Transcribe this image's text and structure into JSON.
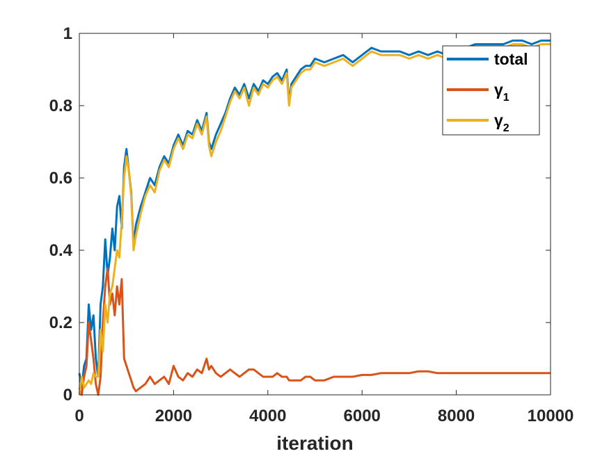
{
  "chart_data": {
    "type": "line",
    "title": "",
    "xlabel": "iteration",
    "ylabel": "",
    "xlim": [
      0,
      10000
    ],
    "ylim": [
      0,
      1
    ],
    "xticks": [
      0,
      2000,
      4000,
      6000,
      8000,
      10000
    ],
    "xtick_labels": [
      "0",
      "2000",
      "4000",
      "6000",
      "8000",
      "10000"
    ],
    "yticks": [
      0,
      0.2,
      0.4,
      0.6,
      0.8,
      1
    ],
    "ytick_labels": [
      "0",
      "0.2",
      "0.4",
      "0.6",
      "0.8",
      "1"
    ],
    "grid": false,
    "legend_position": "top-right",
    "series": [
      {
        "name": "total",
        "legend": {
          "base": "total",
          "sub": ""
        },
        "color": "#0072BD",
        "x": [
          0,
          50,
          100,
          150,
          200,
          250,
          300,
          350,
          400,
          450,
          500,
          550,
          600,
          650,
          700,
          750,
          800,
          850,
          900,
          950,
          1000,
          1050,
          1100,
          1150,
          1200,
          1300,
          1400,
          1500,
          1600,
          1700,
          1800,
          1900,
          2000,
          2100,
          2200,
          2300,
          2400,
          2500,
          2600,
          2700,
          2750,
          2800,
          2900,
          3000,
          3100,
          3200,
          3300,
          3400,
          3500,
          3600,
          3700,
          3800,
          3900,
          4000,
          4100,
          4200,
          4300,
          4400,
          4450,
          4500,
          4600,
          4700,
          4800,
          4900,
          5000,
          5200,
          5400,
          5600,
          5800,
          6000,
          6200,
          6400,
          6600,
          6800,
          7000,
          7200,
          7400,
          7600,
          7800,
          8000,
          8200,
          8400,
          8600,
          8800,
          9000,
          9200,
          9400,
          9600,
          9800,
          10000
        ],
        "y": [
          0.06,
          0.02,
          0.08,
          0.1,
          0.25,
          0.18,
          0.22,
          0.1,
          0.05,
          0.25,
          0.3,
          0.43,
          0.33,
          0.38,
          0.46,
          0.4,
          0.52,
          0.55,
          0.46,
          0.63,
          0.68,
          0.62,
          0.56,
          0.41,
          0.47,
          0.52,
          0.56,
          0.6,
          0.58,
          0.63,
          0.66,
          0.64,
          0.69,
          0.72,
          0.69,
          0.73,
          0.72,
          0.76,
          0.73,
          0.78,
          0.7,
          0.68,
          0.72,
          0.75,
          0.78,
          0.82,
          0.85,
          0.83,
          0.86,
          0.82,
          0.86,
          0.84,
          0.87,
          0.86,
          0.88,
          0.89,
          0.87,
          0.9,
          0.81,
          0.86,
          0.88,
          0.9,
          0.91,
          0.91,
          0.93,
          0.92,
          0.93,
          0.94,
          0.92,
          0.94,
          0.96,
          0.95,
          0.95,
          0.95,
          0.94,
          0.95,
          0.94,
          0.95,
          0.94,
          0.96,
          0.96,
          0.97,
          0.97,
          0.97,
          0.97,
          0.98,
          0.98,
          0.97,
          0.98,
          0.98
        ]
      },
      {
        "name": "γ1",
        "legend": {
          "base": "γ",
          "sub": "1"
        },
        "color": "#D95319",
        "x": [
          0,
          50,
          100,
          150,
          200,
          250,
          300,
          350,
          400,
          450,
          500,
          550,
          600,
          650,
          700,
          750,
          800,
          850,
          900,
          950,
          1000,
          1050,
          1100,
          1150,
          1200,
          1300,
          1400,
          1500,
          1600,
          1700,
          1800,
          1900,
          2000,
          2100,
          2200,
          2300,
          2400,
          2500,
          2600,
          2700,
          2750,
          2800,
          2900,
          3000,
          3100,
          3200,
          3300,
          3400,
          3500,
          3600,
          3700,
          3800,
          3900,
          4000,
          4100,
          4200,
          4300,
          4400,
          4450,
          4500,
          4600,
          4700,
          4800,
          4900,
          5000,
          5200,
          5400,
          5600,
          5800,
          6000,
          6200,
          6400,
          6600,
          6800,
          7000,
          7200,
          7400,
          7600,
          7800,
          8000,
          8200,
          8400,
          8600,
          8800,
          9000,
          9200,
          9400,
          9600,
          9800,
          10000
        ],
        "y": [
          0.02,
          0.0,
          0.05,
          0.08,
          0.2,
          0.15,
          0.1,
          0.03,
          0.0,
          0.05,
          0.2,
          0.3,
          0.35,
          0.25,
          0.28,
          0.22,
          0.3,
          0.25,
          0.32,
          0.1,
          0.08,
          0.06,
          0.04,
          0.02,
          0.01,
          0.02,
          0.03,
          0.05,
          0.03,
          0.04,
          0.05,
          0.03,
          0.08,
          0.05,
          0.04,
          0.06,
          0.05,
          0.07,
          0.06,
          0.1,
          0.07,
          0.08,
          0.06,
          0.05,
          0.06,
          0.07,
          0.06,
          0.05,
          0.06,
          0.07,
          0.07,
          0.06,
          0.05,
          0.05,
          0.05,
          0.06,
          0.05,
          0.05,
          0.04,
          0.04,
          0.04,
          0.04,
          0.05,
          0.05,
          0.04,
          0.04,
          0.05,
          0.05,
          0.05,
          0.055,
          0.055,
          0.06,
          0.06,
          0.06,
          0.06,
          0.065,
          0.065,
          0.06,
          0.06,
          0.06,
          0.06,
          0.06,
          0.06,
          0.06,
          0.06,
          0.06,
          0.06,
          0.06,
          0.06,
          0.06
        ]
      },
      {
        "name": "γ2",
        "legend": {
          "base": "γ",
          "sub": "2"
        },
        "color": "#EDB120",
        "x": [
          0,
          50,
          100,
          150,
          200,
          250,
          300,
          350,
          400,
          450,
          500,
          550,
          600,
          650,
          700,
          750,
          800,
          850,
          900,
          950,
          1000,
          1050,
          1100,
          1150,
          1200,
          1300,
          1400,
          1500,
          1600,
          1700,
          1800,
          1900,
          2000,
          2100,
          2200,
          2300,
          2400,
          2500,
          2600,
          2700,
          2750,
          2800,
          2900,
          3000,
          3100,
          3200,
          3300,
          3400,
          3500,
          3600,
          3700,
          3800,
          3900,
          4000,
          4100,
          4200,
          4300,
          4400,
          4450,
          4500,
          4600,
          4700,
          4800,
          4900,
          5000,
          5200,
          5400,
          5600,
          5800,
          6000,
          6200,
          6400,
          6600,
          6800,
          7000,
          7200,
          7400,
          7600,
          7800,
          8000,
          8200,
          8400,
          8600,
          8800,
          9000,
          9200,
          9400,
          9600,
          9800,
          10000
        ],
        "y": [
          0.0,
          0.05,
          0.02,
          0.03,
          0.04,
          0.03,
          0.06,
          0.05,
          0.05,
          0.18,
          0.12,
          0.25,
          0.2,
          0.28,
          0.3,
          0.35,
          0.4,
          0.38,
          0.48,
          0.6,
          0.66,
          0.62,
          0.55,
          0.4,
          0.44,
          0.5,
          0.55,
          0.58,
          0.56,
          0.62,
          0.65,
          0.63,
          0.68,
          0.71,
          0.68,
          0.72,
          0.71,
          0.75,
          0.72,
          0.77,
          0.69,
          0.66,
          0.7,
          0.73,
          0.77,
          0.81,
          0.84,
          0.82,
          0.85,
          0.8,
          0.85,
          0.83,
          0.86,
          0.85,
          0.87,
          0.88,
          0.86,
          0.89,
          0.8,
          0.85,
          0.87,
          0.89,
          0.9,
          0.9,
          0.92,
          0.91,
          0.92,
          0.93,
          0.91,
          0.93,
          0.95,
          0.94,
          0.94,
          0.94,
          0.93,
          0.94,
          0.93,
          0.94,
          0.93,
          0.95,
          0.95,
          0.96,
          0.96,
          0.96,
          0.96,
          0.97,
          0.97,
          0.96,
          0.97,
          0.97
        ]
      }
    ]
  }
}
